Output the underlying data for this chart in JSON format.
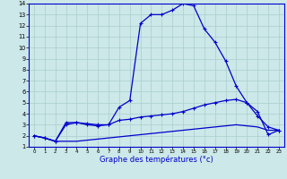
{
  "xlabel": "Graphe des températures (°c)",
  "bg_color": "#cce8e8",
  "grid_color": "#aacece",
  "line_color": "#0000cc",
  "xlim": [
    -0.5,
    23.5
  ],
  "ylim": [
    1,
    14
  ],
  "xticks": [
    0,
    1,
    2,
    3,
    4,
    5,
    6,
    7,
    8,
    9,
    10,
    11,
    12,
    13,
    14,
    15,
    16,
    17,
    18,
    19,
    20,
    21,
    22,
    23
  ],
  "yticks": [
    1,
    2,
    3,
    4,
    5,
    6,
    7,
    8,
    9,
    10,
    11,
    12,
    13,
    14
  ],
  "curve1_x": [
    0,
    1,
    2,
    3,
    4,
    5,
    6,
    7,
    8,
    9,
    10,
    11,
    12,
    13,
    14,
    15,
    16,
    17,
    18,
    19,
    20,
    21,
    22,
    23
  ],
  "curve1_y": [
    2.0,
    1.8,
    1.5,
    3.2,
    3.2,
    3.1,
    3.0,
    3.0,
    4.6,
    5.2,
    12.2,
    13.0,
    13.0,
    13.4,
    14.0,
    13.8,
    11.7,
    10.5,
    8.8,
    6.5,
    5.0,
    4.2,
    2.1,
    2.5
  ],
  "curve2_x": [
    0,
    1,
    2,
    3,
    4,
    5,
    6,
    7,
    8,
    9,
    10,
    11,
    12,
    13,
    14,
    15,
    16,
    17,
    18,
    19,
    20,
    21,
    22,
    23
  ],
  "curve2_y": [
    2.0,
    1.8,
    1.5,
    3.0,
    3.2,
    3.0,
    2.9,
    3.0,
    3.4,
    3.5,
    3.7,
    3.8,
    3.9,
    4.0,
    4.2,
    4.5,
    4.8,
    5.0,
    5.2,
    5.3,
    5.0,
    3.8,
    2.8,
    2.5
  ],
  "curve3_x": [
    0,
    1,
    2,
    3,
    4,
    5,
    6,
    7,
    8,
    9,
    10,
    11,
    12,
    13,
    14,
    15,
    16,
    17,
    18,
    19,
    20,
    21,
    22,
    23
  ],
  "curve3_y": [
    2.0,
    1.8,
    1.5,
    1.5,
    1.5,
    1.6,
    1.7,
    1.8,
    1.9,
    2.0,
    2.1,
    2.2,
    2.3,
    2.4,
    2.5,
    2.6,
    2.7,
    2.8,
    2.9,
    3.0,
    2.9,
    2.8,
    2.5,
    2.5
  ]
}
